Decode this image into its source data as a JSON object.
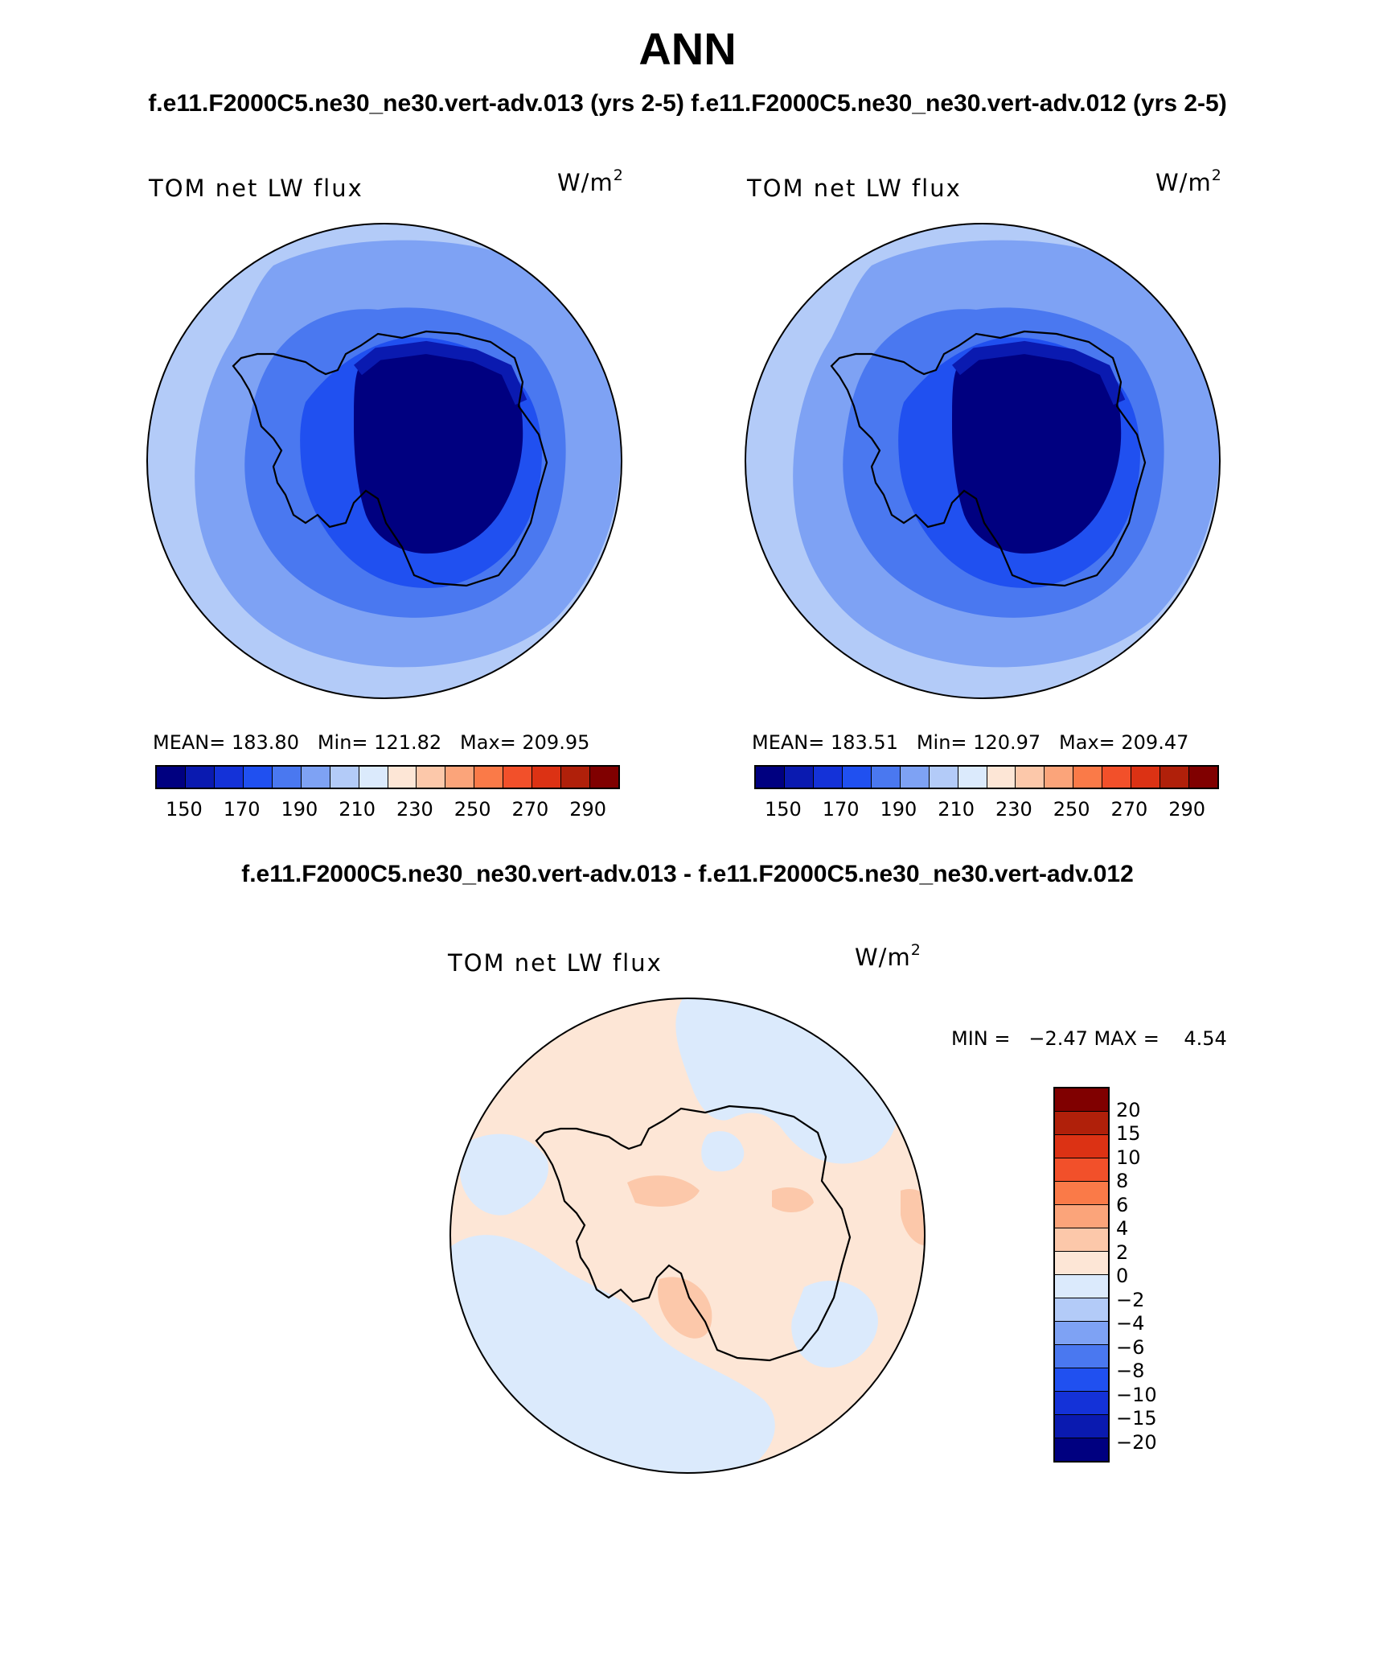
{
  "title": "ANN",
  "subtitle_top": "f.e11.F2000C5.ne30_ne30.vert-adv.013 (yrs 2-5)  f.e11.F2000C5.ne30_ne30.vert-adv.012 (yrs 2-5)",
  "subtitle_diff": "f.e11.F2000C5.ne30_ne30.vert-adv.013 - f.e11.F2000C5.ne30_ne30.vert-adv.012",
  "panels": [
    {
      "variable": "TOM net LW flux",
      "units_base": "W/m",
      "units_exp": "2",
      "stats": "MEAN= 183.80   Min= 121.82   Max= 209.95"
    },
    {
      "variable": "TOM net LW flux",
      "units_base": "W/m",
      "units_exp": "2",
      "stats": "MEAN= 183.51   Min= 120.97   Max= 209.47"
    }
  ],
  "diff_panel": {
    "variable": "TOM net LW flux",
    "units_base": "W/m",
    "units_exp": "2",
    "stats": "MIN =   −2.47 MAX =    4.54"
  },
  "colorbar_main": {
    "colors": [
      "#000080",
      "#0a1ab0",
      "#1432d8",
      "#2050f0",
      "#4a78f0",
      "#7ea2f4",
      "#b3cbf8",
      "#dbeafc",
      "#fde6d6",
      "#fcc8aa",
      "#fba47a",
      "#fa7a48",
      "#f2502a",
      "#dc3214",
      "#b0200a",
      "#800000"
    ],
    "tick_labels": [
      "150",
      "170",
      "190",
      "210",
      "230",
      "250",
      "270",
      "290"
    ]
  },
  "colorbar_diff": {
    "colors": [
      "#800000",
      "#b0200a",
      "#dc3214",
      "#f2502a",
      "#fa7a48",
      "#fba47a",
      "#fcc8aa",
      "#fde6d6",
      "#dbeafc",
      "#b3cbf8",
      "#7ea2f4",
      "#4a78f0",
      "#2050f0",
      "#1432d8",
      "#0a1ab0",
      "#000080"
    ],
    "tick_labels": [
      "20",
      "15",
      "10",
      "8",
      "6",
      "4",
      "2",
      "0",
      "−2",
      "−4",
      "−6",
      "−8",
      "−10",
      "−15",
      "−20"
    ]
  }
}
